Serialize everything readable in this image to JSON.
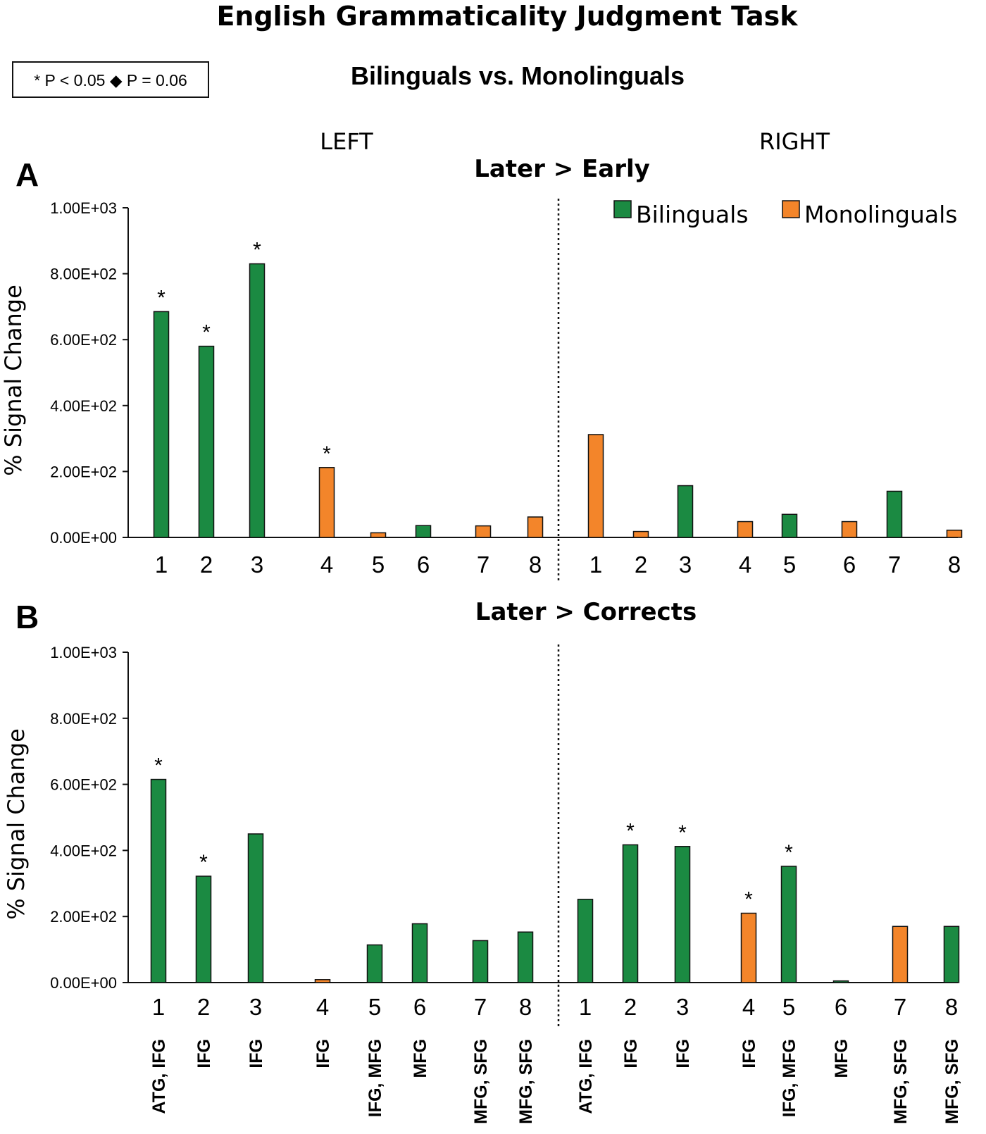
{
  "figure": {
    "title": "English Grammaticality Judgment Task",
    "subtitle": "Bilinguals vs. Monolinguals",
    "significance_key": "* P < 0.05 ◆ P = 0.06",
    "hemisphere_labels": [
      "LEFT",
      "RIGHT"
    ],
    "legend": {
      "placement": "top-right of panel A",
      "items": [
        {
          "label": "Bilinguals",
          "color": "#1b8a42"
        },
        {
          "label": "Monolinguals",
          "color": "#f3852a"
        }
      ]
    },
    "colors": {
      "bilinguals": "#1b8a42",
      "monolinguals": "#f3852a",
      "stroke": "#111111"
    }
  },
  "chart_data": [
    {
      "type": "bar",
      "panel": "A",
      "title": "Later > Early",
      "ylabel": "% Signal Change",
      "ylim": [
        0,
        1000
      ],
      "yticks": [
        0,
        200,
        400,
        600,
        800,
        1000
      ],
      "ytick_labels": [
        "0.00E+00",
        "2.00E+02",
        "4.00E+02",
        "6.00E+02",
        "8.00E+02",
        "1.00E+03"
      ],
      "categories": [
        "1",
        "2",
        "3",
        "4",
        "5",
        "6",
        "7",
        "8",
        "1",
        "2",
        "3",
        "4",
        "5",
        "6",
        "7",
        "8"
      ],
      "bars": [
        {
          "hemisphere": "LEFT",
          "label": "1",
          "value": 685,
          "group": "Bilinguals",
          "sig": "*"
        },
        {
          "hemisphere": "LEFT",
          "label": "2",
          "value": 580,
          "group": "Bilinguals",
          "sig": "*"
        },
        {
          "hemisphere": "LEFT",
          "label": "3",
          "value": 830,
          "group": "Bilinguals",
          "sig": "*"
        },
        {
          "hemisphere": "LEFT",
          "label": "4",
          "value": 212,
          "group": "Monolinguals",
          "sig": "*"
        },
        {
          "hemisphere": "LEFT",
          "label": "5",
          "value": 14,
          "group": "Monolinguals",
          "sig": ""
        },
        {
          "hemisphere": "LEFT",
          "label": "6",
          "value": 36,
          "group": "Bilinguals",
          "sig": ""
        },
        {
          "hemisphere": "LEFT",
          "label": "7",
          "value": 35,
          "group": "Monolinguals",
          "sig": ""
        },
        {
          "hemisphere": "LEFT",
          "label": "8",
          "value": 62,
          "group": "Monolinguals",
          "sig": ""
        },
        {
          "hemisphere": "RIGHT",
          "label": "1",
          "value": 312,
          "group": "Monolinguals",
          "sig": ""
        },
        {
          "hemisphere": "RIGHT",
          "label": "2",
          "value": 18,
          "group": "Monolinguals",
          "sig": ""
        },
        {
          "hemisphere": "RIGHT",
          "label": "3",
          "value": 157,
          "group": "Bilinguals",
          "sig": ""
        },
        {
          "hemisphere": "RIGHT",
          "label": "4",
          "value": 48,
          "group": "Monolinguals",
          "sig": ""
        },
        {
          "hemisphere": "RIGHT",
          "label": "5",
          "value": 70,
          "group": "Bilinguals",
          "sig": ""
        },
        {
          "hemisphere": "RIGHT",
          "label": "6",
          "value": 48,
          "group": "Monolinguals",
          "sig": ""
        },
        {
          "hemisphere": "RIGHT",
          "label": "7",
          "value": 140,
          "group": "Bilinguals",
          "sig": ""
        },
        {
          "hemisphere": "RIGHT",
          "label": "8",
          "value": 22,
          "group": "Monolinguals",
          "sig": ""
        }
      ]
    },
    {
      "type": "bar",
      "panel": "B",
      "title": "Later > Corrects",
      "ylabel": "% Signal Change",
      "ylim": [
        0,
        1000
      ],
      "yticks": [
        0,
        200,
        400,
        600,
        800,
        1000
      ],
      "ytick_labels": [
        "0.00E+00",
        "2.00E+02",
        "4.00E+02",
        "6.00E+02",
        "8.00E+02",
        "1.00E+03"
      ],
      "categories": [
        "1",
        "2",
        "3",
        "4",
        "5",
        "6",
        "7",
        "8",
        "1",
        "2",
        "3",
        "4",
        "5",
        "6",
        "7",
        "8"
      ],
      "region_labels": [
        "ATG, IFG",
        "IFG",
        "IFG",
        "IFG",
        "IFG, MFG",
        "MFG",
        "MFG, SFG",
        "MFG, SFG",
        "ATG, IFG",
        "IFG",
        "IFG",
        "IFG",
        "IFG, MFG",
        "MFG",
        "MFG, SFG",
        "MFG, SFG"
      ],
      "bars": [
        {
          "hemisphere": "LEFT",
          "label": "1",
          "value": 615,
          "group": "Bilinguals",
          "sig": "*"
        },
        {
          "hemisphere": "LEFT",
          "label": "2",
          "value": 322,
          "group": "Bilinguals",
          "sig": "*"
        },
        {
          "hemisphere": "LEFT",
          "label": "3",
          "value": 450,
          "group": "Bilinguals",
          "sig": ""
        },
        {
          "hemisphere": "LEFT",
          "label": "4",
          "value": 9,
          "group": "Monolinguals",
          "sig": ""
        },
        {
          "hemisphere": "LEFT",
          "label": "5",
          "value": 114,
          "group": "Bilinguals",
          "sig": ""
        },
        {
          "hemisphere": "LEFT",
          "label": "6",
          "value": 178,
          "group": "Bilinguals",
          "sig": ""
        },
        {
          "hemisphere": "LEFT",
          "label": "7",
          "value": 127,
          "group": "Bilinguals",
          "sig": ""
        },
        {
          "hemisphere": "LEFT",
          "label": "8",
          "value": 153,
          "group": "Bilinguals",
          "sig": ""
        },
        {
          "hemisphere": "RIGHT",
          "label": "1",
          "value": 252,
          "group": "Bilinguals",
          "sig": ""
        },
        {
          "hemisphere": "RIGHT",
          "label": "2",
          "value": 417,
          "group": "Bilinguals",
          "sig": "*"
        },
        {
          "hemisphere": "RIGHT",
          "label": "3",
          "value": 412,
          "group": "Bilinguals",
          "sig": "*"
        },
        {
          "hemisphere": "RIGHT",
          "label": "4",
          "value": 210,
          "group": "Monolinguals",
          "sig": "*"
        },
        {
          "hemisphere": "RIGHT",
          "label": "5",
          "value": 352,
          "group": "Bilinguals",
          "sig": "*"
        },
        {
          "hemisphere": "RIGHT",
          "label": "6",
          "value": 5,
          "group": "Bilinguals",
          "sig": ""
        },
        {
          "hemisphere": "RIGHT",
          "label": "7",
          "value": 170,
          "group": "Monolinguals",
          "sig": ""
        },
        {
          "hemisphere": "RIGHT",
          "label": "8",
          "value": 170,
          "group": "Bilinguals",
          "sig": ""
        }
      ]
    }
  ]
}
